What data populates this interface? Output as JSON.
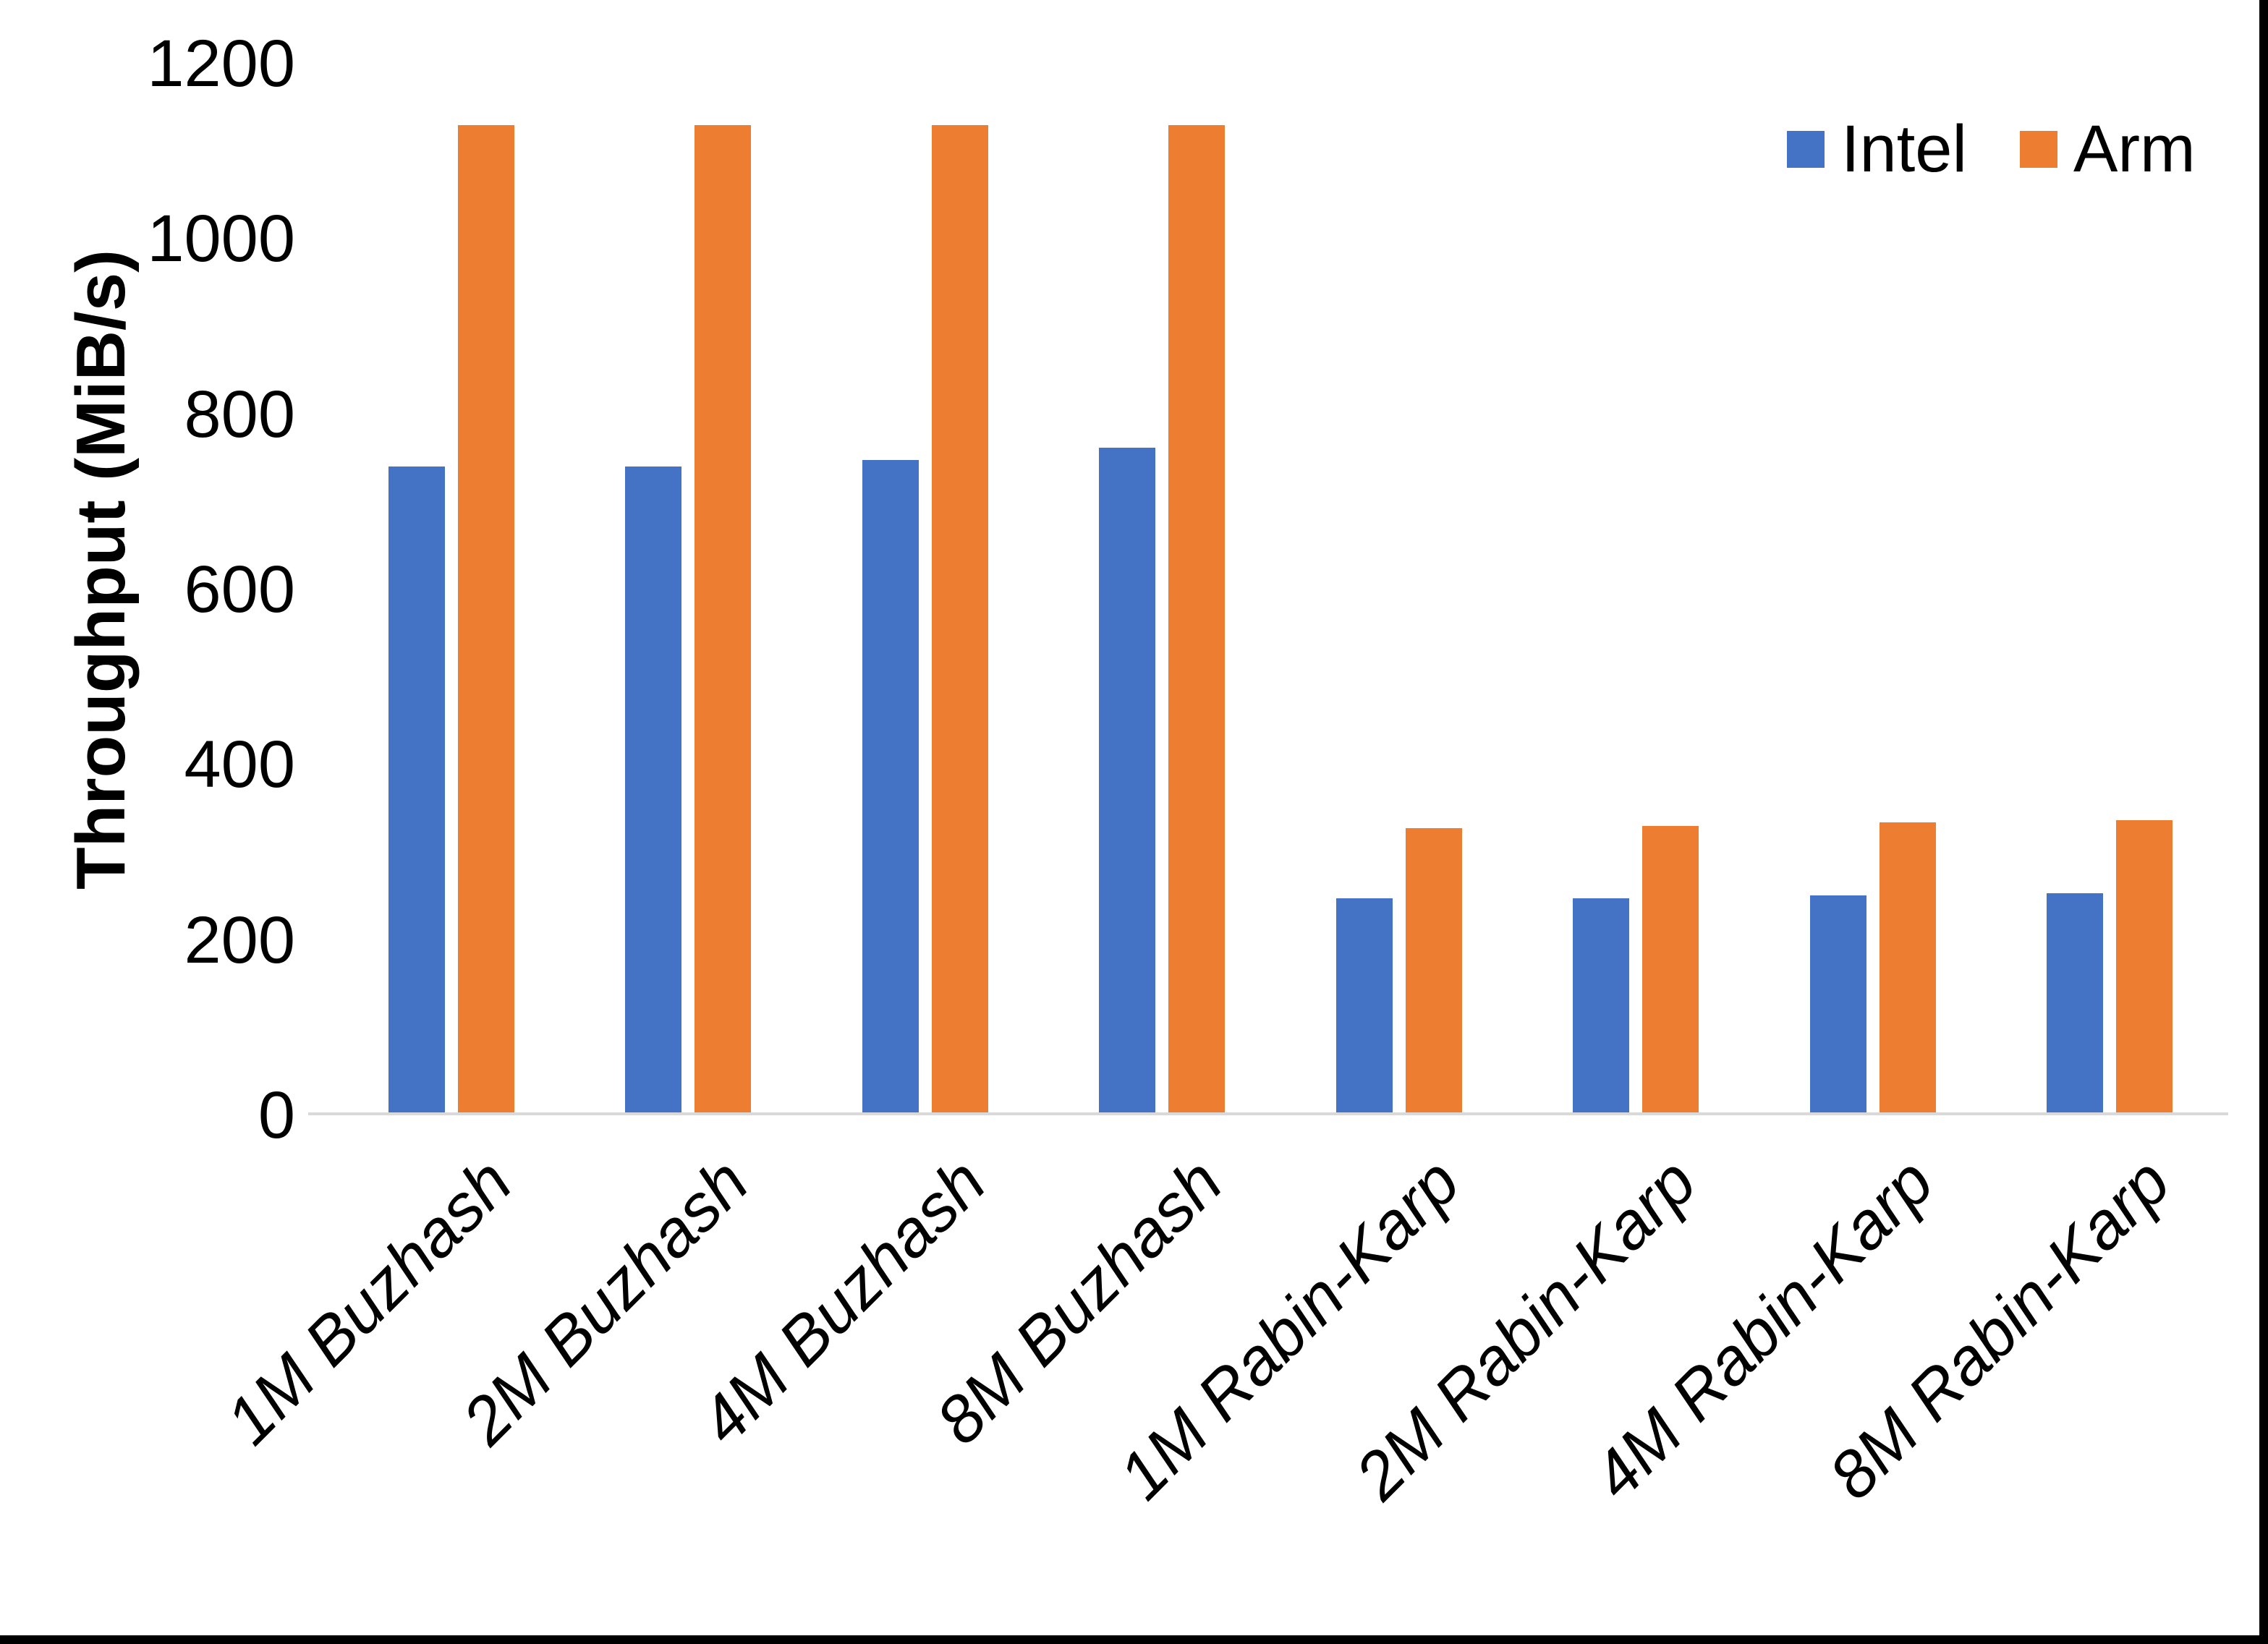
{
  "chart_data": {
    "type": "bar",
    "title": "",
    "ylabel": "Throughput (MiB/s)",
    "xlabel": "",
    "ylim": [
      0,
      1200
    ],
    "yticks": [
      0,
      200,
      400,
      600,
      800,
      1000,
      1200
    ],
    "grid": false,
    "legend_position": "top-right",
    "categories": [
      "1M Buzhash",
      "2M Buzhash",
      "4M Buzhash",
      "8M Buzhash",
      "1M Rabin-Karp",
      "2M Rabin-Karp",
      "4M Rabin-Karp",
      "8M Rabin-Karp"
    ],
    "series": [
      {
        "name": "Intel",
        "color": "#4472C4",
        "values": [
          740,
          740,
          748,
          762,
          248,
          248,
          251,
          253
        ]
      },
      {
        "name": "Arm",
        "color": "#ED7D31",
        "values": [
          1130,
          1130,
          1130,
          1130,
          328,
          330,
          334,
          337
        ]
      }
    ]
  },
  "axis": {
    "line_color": "#D9D9D9",
    "text_color": "#000000"
  },
  "page": {
    "background": "#FFFFFF",
    "border_color": "#000000"
  }
}
